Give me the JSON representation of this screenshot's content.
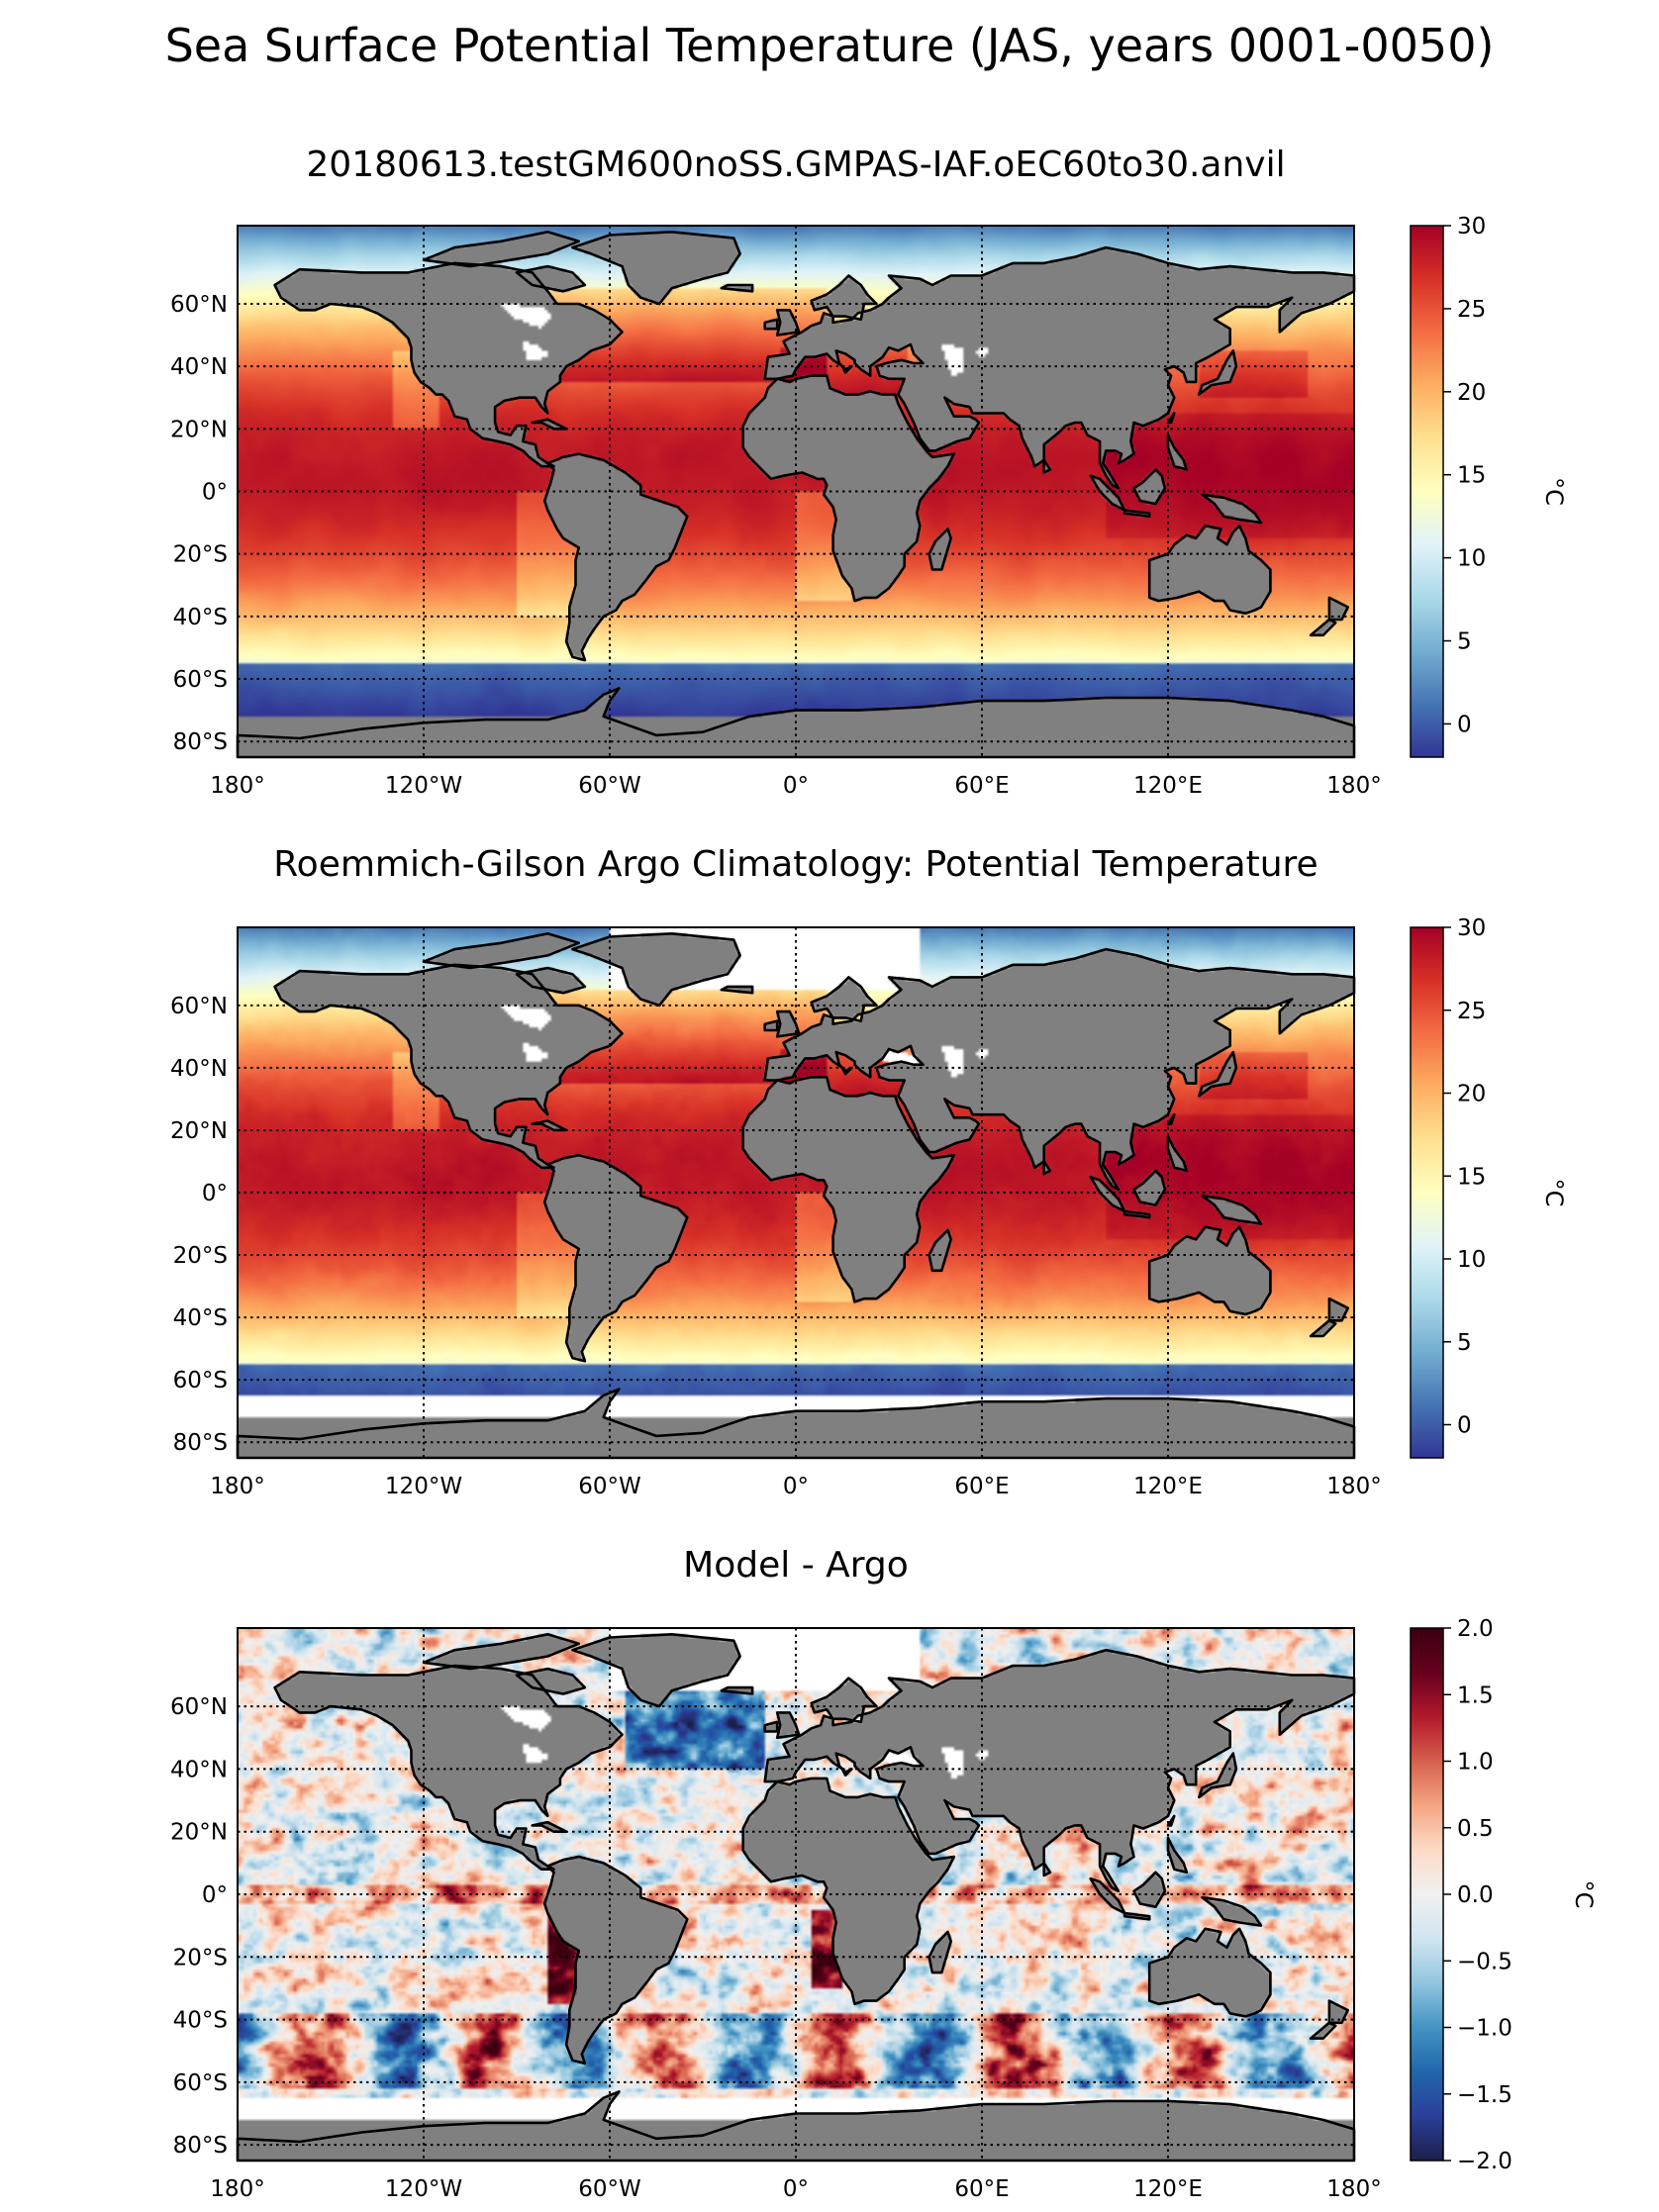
{
  "figure": {
    "suptitle": "Sea Surface Potential Temperature (JAS, years 0001-0050)"
  },
  "colors": {
    "land": "#808080",
    "missing": "#ffffff",
    "coast": "#000000",
    "grid": "#000000"
  },
  "chart_data": [
    {
      "type": "heatmap",
      "title": "20180613.testGM600noSS.GMPAS-IAF.oEC60to30.anvil",
      "x_ticks": [
        {
          "value": -180,
          "label": "180°"
        },
        {
          "value": -120,
          "label": "120°W"
        },
        {
          "value": -60,
          "label": "60°W"
        },
        {
          "value": 0,
          "label": "0°"
        },
        {
          "value": 60,
          "label": "60°E"
        },
        {
          "value": 120,
          "label": "120°E"
        },
        {
          "value": 180,
          "label": "180°"
        }
      ],
      "y_ticks": [
        {
          "value": 60,
          "label": "60°N"
        },
        {
          "value": 40,
          "label": "40°N"
        },
        {
          "value": 20,
          "label": "20°N"
        },
        {
          "value": 0,
          "label": "0°"
        },
        {
          "value": -20,
          "label": "20°S"
        },
        {
          "value": -40,
          "label": "40°S"
        },
        {
          "value": -60,
          "label": "60°S"
        },
        {
          "value": -80,
          "label": "80°S"
        }
      ],
      "xlim": [
        -180,
        180
      ],
      "ylim": [
        -85,
        85
      ],
      "colorbar": {
        "label": "°C",
        "vmin": -2,
        "vmax": 30,
        "ticks": [
          {
            "value": 0,
            "label": "0"
          },
          {
            "value": 5,
            "label": "5"
          },
          {
            "value": 10,
            "label": "10"
          },
          {
            "value": 15,
            "label": "15"
          },
          {
            "value": 20,
            "label": "20"
          },
          {
            "value": 25,
            "label": "25"
          },
          {
            "value": 30,
            "label": "30"
          }
        ],
        "colormap": [
          "#313695",
          "#4575b4",
          "#74add1",
          "#abd9e9",
          "#e0f3f8",
          "#ffffbf",
          "#fee090",
          "#fdae61",
          "#f46d43",
          "#d73027",
          "#a50026"
        ]
      },
      "field": "sst_model",
      "missing_south_of": -90
    },
    {
      "type": "heatmap",
      "title": "Roemmich-Gilson Argo Climatology: Potential Temperature",
      "x_ticks": [
        {
          "value": -180,
          "label": "180°"
        },
        {
          "value": -120,
          "label": "120°W"
        },
        {
          "value": -60,
          "label": "60°W"
        },
        {
          "value": 0,
          "label": "0°"
        },
        {
          "value": 60,
          "label": "60°E"
        },
        {
          "value": 120,
          "label": "120°E"
        },
        {
          "value": 180,
          "label": "180°"
        }
      ],
      "y_ticks": [
        {
          "value": 60,
          "label": "60°N"
        },
        {
          "value": 40,
          "label": "40°N"
        },
        {
          "value": 20,
          "label": "20°N"
        },
        {
          "value": 0,
          "label": "0°"
        },
        {
          "value": -20,
          "label": "20°S"
        },
        {
          "value": -40,
          "label": "40°S"
        },
        {
          "value": -60,
          "label": "60°S"
        },
        {
          "value": -80,
          "label": "80°S"
        }
      ],
      "xlim": [
        -180,
        180
      ],
      "ylim": [
        -85,
        85
      ],
      "colorbar": {
        "label": "°C",
        "vmin": -2,
        "vmax": 30,
        "ticks": [
          {
            "value": 0,
            "label": "0"
          },
          {
            "value": 5,
            "label": "5"
          },
          {
            "value": 10,
            "label": "10"
          },
          {
            "value": 15,
            "label": "15"
          },
          {
            "value": 20,
            "label": "20"
          },
          {
            "value": 25,
            "label": "25"
          },
          {
            "value": 30,
            "label": "30"
          }
        ],
        "colormap": [
          "#313695",
          "#4575b4",
          "#74add1",
          "#abd9e9",
          "#e0f3f8",
          "#ffffbf",
          "#fee090",
          "#fdae61",
          "#f46d43",
          "#d73027",
          "#a50026"
        ]
      },
      "field": "sst_argo",
      "missing_south_of": -65
    },
    {
      "type": "heatmap",
      "title": "Model - Argo",
      "x_ticks": [
        {
          "value": -180,
          "label": "180°"
        },
        {
          "value": -120,
          "label": "120°W"
        },
        {
          "value": -60,
          "label": "60°W"
        },
        {
          "value": 0,
          "label": "0°"
        },
        {
          "value": 60,
          "label": "60°E"
        },
        {
          "value": 120,
          "label": "120°E"
        },
        {
          "value": 180,
          "label": "180°"
        }
      ],
      "y_ticks": [
        {
          "value": 60,
          "label": "60°N"
        },
        {
          "value": 40,
          "label": "40°N"
        },
        {
          "value": 20,
          "label": "20°N"
        },
        {
          "value": 0,
          "label": "0°"
        },
        {
          "value": -20,
          "label": "20°S"
        },
        {
          "value": -40,
          "label": "40°S"
        },
        {
          "value": -60,
          "label": "60°S"
        },
        {
          "value": -80,
          "label": "80°S"
        }
      ],
      "xlim": [
        -180,
        180
      ],
      "ylim": [
        -85,
        85
      ],
      "colorbar": {
        "label": "°C",
        "vmin": -2,
        "vmax": 2,
        "ticks": [
          {
            "value": -2,
            "label": "−2.0"
          },
          {
            "value": -1.5,
            "label": "−1.5"
          },
          {
            "value": -1,
            "label": "−1.0"
          },
          {
            "value": -0.5,
            "label": "−0.5"
          },
          {
            "value": 0,
            "label": "0.0"
          },
          {
            "value": 0.5,
            "label": "0.5"
          },
          {
            "value": 1,
            "label": "1.0"
          },
          {
            "value": 1.5,
            "label": "1.5"
          },
          {
            "value": 2,
            "label": "2.0"
          }
        ],
        "colormap": [
          "#1b1f4a",
          "#2b3f99",
          "#2166ac",
          "#4393c3",
          "#92c5de",
          "#d1e5f0",
          "#f0f0f0",
          "#fddbc7",
          "#f4a582",
          "#d6604d",
          "#b2182b",
          "#67001f",
          "#3b0010"
        ]
      },
      "field": "bias",
      "missing_south_of": -65
    }
  ]
}
